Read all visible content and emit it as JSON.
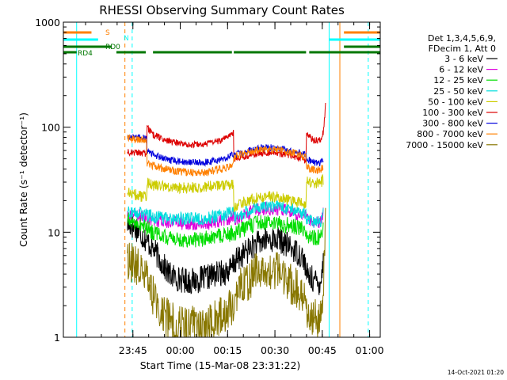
{
  "chart_data": {
    "type": "line",
    "title": "RHESSI Observing Summary Count Rates",
    "xlabel": "Start Time (15-Mar-08 23:31:22)",
    "ylabel": "Count Rate (s⁻¹ detector⁻¹)",
    "yscale": "log",
    "ylim": [
      1,
      1000
    ],
    "xlim_minutes_from_start": [
      -8.4,
      92
    ],
    "y_ticks": [
      "1",
      "10",
      "100",
      "1000"
    ],
    "x_ticks": [
      {
        "label": "23:45",
        "t": 13.63
      },
      {
        "label": "00:00",
        "t": 28.63
      },
      {
        "label": "00:15",
        "t": 43.63
      },
      {
        "label": "00:30",
        "t": 58.63
      },
      {
        "label": "00:45",
        "t": 73.63
      },
      {
        "label": "01:00",
        "t": 88.63
      }
    ],
    "legend_header": [
      "Det 1,3,4,5,6,9,",
      "FDecim 1, Att 0"
    ],
    "legend_position": "right",
    "series": [
      {
        "name": "3 - 6 keV",
        "color": "#000000",
        "samples": [
          [
            11.9,
            12
          ],
          [
            14.5,
            11
          ],
          [
            17,
            9
          ],
          [
            20,
            7
          ],
          [
            23,
            5
          ],
          [
            25,
            4
          ],
          [
            28,
            3.6
          ],
          [
            32,
            3.4
          ],
          [
            36,
            3.6
          ],
          [
            40,
            4
          ],
          [
            42,
            4.1
          ],
          [
            44,
            4.3
          ],
          [
            45,
            4.5
          ],
          [
            45.5,
            5
          ],
          [
            48,
            6
          ],
          [
            52,
            7.5
          ],
          [
            56,
            8.5
          ],
          [
            60,
            8.5
          ],
          [
            64,
            7
          ],
          [
            67,
            6
          ],
          [
            68,
            5.5
          ],
          [
            68.5,
            4
          ],
          [
            71,
            3.5
          ],
          [
            72.5,
            3.2
          ],
          [
            73.6,
            4
          ],
          [
            74,
            6
          ]
        ]
      },
      {
        "name": "6 - 12 keV",
        "color": "#dd00dd",
        "samples": [
          [
            11.9,
            15
          ],
          [
            16,
            14
          ],
          [
            20,
            13
          ],
          [
            24,
            12.5
          ],
          [
            28,
            12.3
          ],
          [
            32,
            12
          ],
          [
            36,
            12
          ],
          [
            40,
            12.5
          ],
          [
            44,
            13.5
          ],
          [
            45.5,
            14
          ],
          [
            45.6,
            13
          ],
          [
            48,
            14
          ],
          [
            52,
            16
          ],
          [
            56,
            17
          ],
          [
            60,
            16.5
          ],
          [
            64,
            15.5
          ],
          [
            67,
            14.5
          ],
          [
            68.5,
            14
          ],
          [
            68.6,
            13.5
          ],
          [
            71,
            12.5
          ],
          [
            73,
            12.2
          ],
          [
            74,
            16
          ]
        ]
      },
      {
        "name": "12 - 25 keV",
        "color": "#00dd00",
        "samples": [
          [
            11.9,
            13
          ],
          [
            16,
            12
          ],
          [
            20,
            10
          ],
          [
            24,
            9
          ],
          [
            28,
            8.5
          ],
          [
            32,
            8.5
          ],
          [
            36,
            8.7
          ],
          [
            40,
            9
          ],
          [
            44,
            9.5
          ],
          [
            45.5,
            10
          ],
          [
            45.6,
            9.5
          ],
          [
            48,
            10.5
          ],
          [
            52,
            12
          ],
          [
            56,
            12.5
          ],
          [
            60,
            12
          ],
          [
            64,
            11.5
          ],
          [
            67,
            11
          ],
          [
            68.5,
            10.5
          ],
          [
            68.6,
            9
          ],
          [
            71,
            8.8
          ],
          [
            73,
            9
          ],
          [
            74,
            11
          ]
        ]
      },
      {
        "name": "25 - 50 keV",
        "color": "#00dddd",
        "samples": [
          [
            11.9,
            16
          ],
          [
            16,
            15
          ],
          [
            20,
            14
          ],
          [
            24,
            13.5
          ],
          [
            28,
            13.5
          ],
          [
            32,
            13.5
          ],
          [
            36,
            13.5
          ],
          [
            40,
            14
          ],
          [
            44,
            15
          ],
          [
            45.5,
            15.5
          ],
          [
            45.6,
            13.5
          ],
          [
            48,
            15
          ],
          [
            52,
            17
          ],
          [
            56,
            18
          ],
          [
            60,
            17.5
          ],
          [
            64,
            16.5
          ],
          [
            67,
            15.5
          ],
          [
            68.5,
            15
          ],
          [
            68.6,
            13
          ],
          [
            71,
            12.5
          ],
          [
            73,
            12.5
          ],
          [
            74,
            15
          ]
        ]
      },
      {
        "name": "50 - 100 keV",
        "color": "#cccc00",
        "samples": [
          [
            11.9,
            24
          ],
          [
            16,
            22
          ],
          [
            18,
            22
          ],
          [
            18.1,
            30
          ],
          [
            20,
            28
          ],
          [
            24,
            27
          ],
          [
            28,
            26.5
          ],
          [
            32,
            26.5
          ],
          [
            36,
            27
          ],
          [
            40,
            27.5
          ],
          [
            44,
            28
          ],
          [
            45.5,
            29
          ],
          [
            45.6,
            17
          ],
          [
            48,
            19
          ],
          [
            52,
            21
          ],
          [
            56,
            22
          ],
          [
            60,
            21.5
          ],
          [
            64,
            20
          ],
          [
            67,
            19
          ],
          [
            68.5,
            18
          ],
          [
            68.6,
            30
          ],
          [
            71,
            29
          ],
          [
            73,
            29.5
          ],
          [
            74,
            32
          ]
        ]
      },
      {
        "name": "100 - 300 keV",
        "color": "#dd0000",
        "samples": [
          [
            11.9,
            58
          ],
          [
            16,
            57
          ],
          [
            18,
            56
          ],
          [
            18.1,
            100
          ],
          [
            20,
            85
          ],
          [
            24,
            75
          ],
          [
            28,
            70
          ],
          [
            32,
            68
          ],
          [
            36,
            68
          ],
          [
            40,
            72
          ],
          [
            44,
            80
          ],
          [
            45.5,
            90
          ],
          [
            45.6,
            50
          ],
          [
            48,
            52
          ],
          [
            52,
            55
          ],
          [
            56,
            57
          ],
          [
            60,
            56
          ],
          [
            64,
            53
          ],
          [
            67,
            50
          ],
          [
            68.5,
            48
          ],
          [
            68.6,
            85
          ],
          [
            71,
            75
          ],
          [
            73,
            75
          ],
          [
            74,
            90
          ],
          [
            74.7,
            170
          ]
        ]
      },
      {
        "name": "300 - 800 keV",
        "color": "#0000dd",
        "samples": [
          [
            11.9,
            82
          ],
          [
            16,
            80
          ],
          [
            18,
            78
          ],
          [
            18.1,
            60
          ],
          [
            20,
            55
          ],
          [
            24,
            50
          ],
          [
            28,
            47
          ],
          [
            32,
            46
          ],
          [
            36,
            46
          ],
          [
            40,
            48
          ],
          [
            44,
            52
          ],
          [
            45.5,
            55
          ],
          [
            45.6,
            54
          ],
          [
            48,
            57
          ],
          [
            52,
            62
          ],
          [
            56,
            64
          ],
          [
            60,
            63
          ],
          [
            64,
            59
          ],
          [
            67,
            56
          ],
          [
            68.5,
            55
          ],
          [
            68.6,
            50
          ],
          [
            71,
            46
          ],
          [
            73,
            46
          ],
          [
            74,
            50
          ]
        ]
      },
      {
        "name": "800 - 7000 keV",
        "color": "#ff8000",
        "samples": [
          [
            11.9,
            78
          ],
          [
            16,
            76
          ],
          [
            18,
            74
          ],
          [
            18.1,
            46
          ],
          [
            20,
            43
          ],
          [
            24,
            40
          ],
          [
            28,
            38
          ],
          [
            32,
            37
          ],
          [
            36,
            37
          ],
          [
            40,
            39
          ],
          [
            44,
            42
          ],
          [
            45.5,
            45
          ],
          [
            45.6,
            52
          ],
          [
            48,
            55
          ],
          [
            52,
            60
          ],
          [
            56,
            62
          ],
          [
            60,
            61
          ],
          [
            64,
            57
          ],
          [
            67,
            54
          ],
          [
            68.5,
            52
          ],
          [
            68.6,
            42
          ],
          [
            71,
            39
          ],
          [
            73,
            39
          ],
          [
            74,
            42
          ]
        ]
      },
      {
        "name": "7000 - 15000 keV",
        "color": "#887700",
        "samples": [
          [
            11.9,
            5.5
          ],
          [
            16,
            4.5
          ],
          [
            18,
            3.5
          ],
          [
            20,
            2.5
          ],
          [
            22,
            2
          ],
          [
            24,
            1.6
          ],
          [
            28,
            1.3
          ],
          [
            32,
            1.3
          ],
          [
            36,
            1.3
          ],
          [
            40,
            1.5
          ],
          [
            44,
            1.8
          ],
          [
            45.5,
            2
          ],
          [
            45.6,
            2.5
          ],
          [
            48,
            3
          ],
          [
            52,
            4
          ],
          [
            56,
            4.5
          ],
          [
            60,
            4.2
          ],
          [
            64,
            3.2
          ],
          [
            67,
            2.6
          ],
          [
            68.5,
            2.2
          ],
          [
            68.6,
            2
          ],
          [
            71,
            1.5
          ],
          [
            73,
            1.4
          ],
          [
            74,
            3
          ],
          [
            74.7,
            12
          ]
        ]
      }
    ],
    "flags": [
      {
        "label": "S",
        "color": "#ff8000",
        "intervals": [
          [
            -8.4,
            0.5
          ],
          [
            80.5,
            92
          ]
        ]
      },
      {
        "label": "N",
        "color": "#00ffff",
        "intervals": [
          [
            -8.4,
            2.6
          ],
          [
            75.8,
            92
          ]
        ]
      },
      {
        "label": "RD0",
        "color": "#007700",
        "intervals": [
          [
            -8.4,
            6.8
          ],
          [
            80.5,
            92
          ]
        ]
      },
      {
        "label": "RD4",
        "color": "#007700",
        "intervals": [
          [
            -8.4,
            -4.2
          ],
          [
            8.4,
            17.7
          ],
          [
            20,
            45
          ],
          [
            45.6,
            68.5
          ],
          [
            69.5,
            92
          ]
        ]
      }
    ],
    "event_lines": [
      {
        "t": -4.2,
        "color": "#00ffff",
        "style": "solid"
      },
      {
        "t": 11.1,
        "color": "#ff8000",
        "style": "dashed"
      },
      {
        "t": 13.4,
        "color": "#00ffff",
        "style": "dashed"
      },
      {
        "t": 75.8,
        "color": "#00ffff",
        "style": "solid"
      },
      {
        "t": 79.2,
        "color": "#ff8000",
        "style": "solid"
      },
      {
        "t": 88.2,
        "color": "#00ffff",
        "style": "dashed"
      }
    ],
    "footer_timestamp": "14-Oct-2021 01:20"
  }
}
